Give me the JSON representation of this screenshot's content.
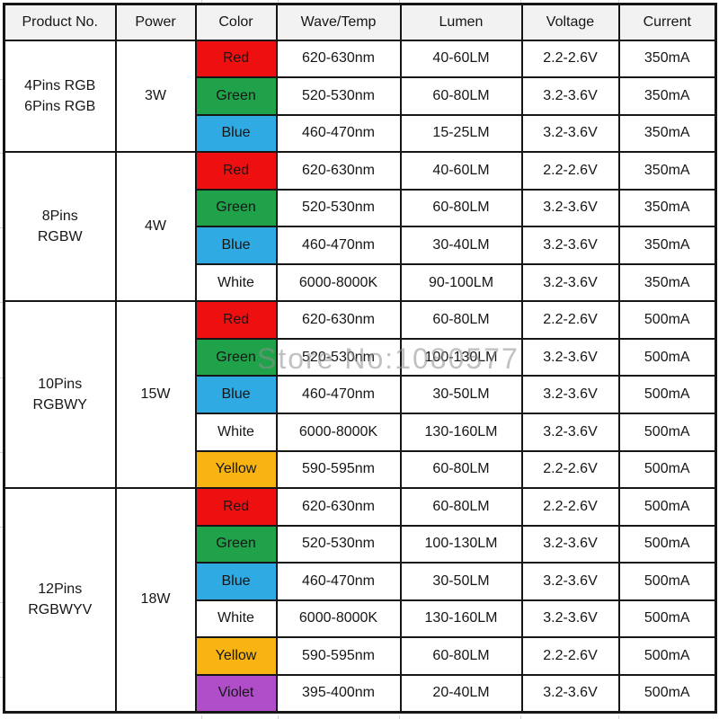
{
  "header": {
    "product": "Product No.",
    "power": "Power",
    "color": "Color",
    "wave": "Wave/Temp",
    "lumen": "Lumen",
    "voltage": "Voltage",
    "current": "Current"
  },
  "watermark": "Store No:1080577",
  "swatch_colors": {
    "Red": "#ee1010",
    "Green": "#1fa24a",
    "Blue": "#2faae2",
    "White": "#ffffff",
    "Yellow": "#f8b511",
    "Violet": "#af4ec8"
  },
  "border_color": "#161616",
  "header_bg": "#f2f2f2",
  "groups": [
    {
      "product_lines": [
        "4Pins RGB",
        "6Pins RGB"
      ],
      "power": "3W",
      "rows": [
        {
          "color": "Red",
          "wave": "620-630nm",
          "lumen": "40-60LM",
          "voltage": "2.2-2.6V",
          "current": "350mA"
        },
        {
          "color": "Green",
          "wave": "520-530nm",
          "lumen": "60-80LM",
          "voltage": "3.2-3.6V",
          "current": "350mA"
        },
        {
          "color": "Blue",
          "wave": "460-470nm",
          "lumen": "15-25LM",
          "voltage": "3.2-3.6V",
          "current": "350mA"
        }
      ]
    },
    {
      "product_lines": [
        "8Pins",
        "RGBW"
      ],
      "power": "4W",
      "rows": [
        {
          "color": "Red",
          "wave": "620-630nm",
          "lumen": "40-60LM",
          "voltage": "2.2-2.6V",
          "current": "350mA"
        },
        {
          "color": "Green",
          "wave": "520-530nm",
          "lumen": "60-80LM",
          "voltage": "3.2-3.6V",
          "current": "350mA"
        },
        {
          "color": "Blue",
          "wave": "460-470nm",
          "lumen": "30-40LM",
          "voltage": "3.2-3.6V",
          "current": "350mA"
        },
        {
          "color": "White",
          "wave": "6000-8000K",
          "lumen": "90-100LM",
          "voltage": "3.2-3.6V",
          "current": "350mA"
        }
      ]
    },
    {
      "product_lines": [
        "10Pins",
        "RGBWY"
      ],
      "power": "15W",
      "rows": [
        {
          "color": "Red",
          "wave": "620-630nm",
          "lumen": "60-80LM",
          "voltage": "2.2-2.6V",
          "current": "500mA"
        },
        {
          "color": "Green",
          "wave": "520-530nm",
          "lumen": "100-130LM",
          "voltage": "3.2-3.6V",
          "current": "500mA"
        },
        {
          "color": "Blue",
          "wave": "460-470nm",
          "lumen": "30-50LM",
          "voltage": "3.2-3.6V",
          "current": "500mA"
        },
        {
          "color": "White",
          "wave": "6000-8000K",
          "lumen": "130-160LM",
          "voltage": "3.2-3.6V",
          "current": "500mA"
        },
        {
          "color": "Yellow",
          "wave": "590-595nm",
          "lumen": "60-80LM",
          "voltage": "2.2-2.6V",
          "current": "500mA"
        }
      ]
    },
    {
      "product_lines": [
        "12Pins",
        "RGBWYV"
      ],
      "power": "18W",
      "rows": [
        {
          "color": "Red",
          "wave": "620-630nm",
          "lumen": "60-80LM",
          "voltage": "2.2-2.6V",
          "current": "500mA"
        },
        {
          "color": "Green",
          "wave": "520-530nm",
          "lumen": "100-130LM",
          "voltage": "3.2-3.6V",
          "current": "500mA"
        },
        {
          "color": "Blue",
          "wave": "460-470nm",
          "lumen": "30-50LM",
          "voltage": "3.2-3.6V",
          "current": "500mA"
        },
        {
          "color": "White",
          "wave": "6000-8000K",
          "lumen": "130-160LM",
          "voltage": "3.2-3.6V",
          "current": "500mA"
        },
        {
          "color": "Yellow",
          "wave": "590-595nm",
          "lumen": "60-80LM",
          "voltage": "2.2-2.6V",
          "current": "500mA"
        },
        {
          "color": "Violet",
          "wave": "395-400nm",
          "lumen": "20-40LM",
          "voltage": "3.2-3.6V",
          "current": "500mA"
        }
      ]
    }
  ]
}
